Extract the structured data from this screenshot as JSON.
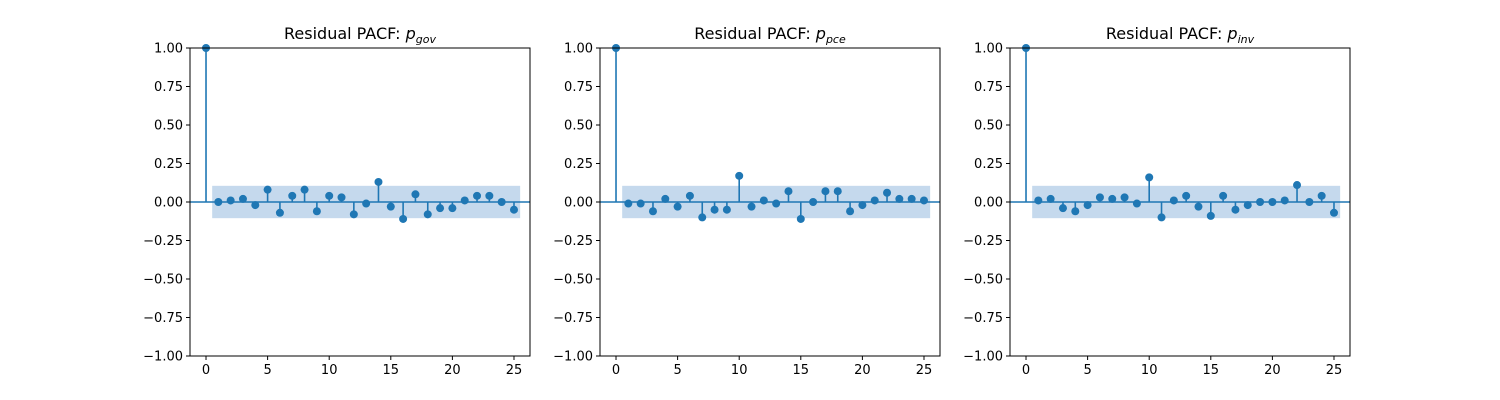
{
  "chart_data": [
    {
      "type": "stem",
      "title_prefix": "Residual PACF: ",
      "title_symbol": "p",
      "title_subscript": "gov",
      "x": [
        0,
        1,
        2,
        3,
        4,
        5,
        6,
        7,
        8,
        9,
        10,
        11,
        12,
        13,
        14,
        15,
        16,
        17,
        18,
        19,
        20,
        21,
        22,
        23,
        24,
        25
      ],
      "values": [
        1.0,
        0.0,
        0.01,
        0.02,
        -0.02,
        0.08,
        -0.07,
        0.04,
        0.08,
        -0.06,
        0.04,
        0.03,
        -0.08,
        -0.01,
        0.13,
        -0.03,
        -0.11,
        0.05,
        -0.08,
        -0.04,
        -0.04,
        0.01,
        0.04,
        0.04,
        0.0,
        -0.05
      ],
      "confidence_band": [
        -0.105,
        0.105
      ],
      "xlim": [
        -1.3,
        26.3
      ],
      "ylim": [
        -1.0,
        1.0
      ],
      "xticks": [
        0,
        5,
        10,
        15,
        20,
        25
      ],
      "yticks": [
        -1.0,
        -0.75,
        -0.5,
        -0.25,
        0.0,
        0.25,
        0.5,
        0.75,
        1.0
      ],
      "ytick_labels": [
        "−1.00",
        "−0.75",
        "−0.50",
        "−0.25",
        "0.00",
        "0.25",
        "0.50",
        "0.75",
        "1.00"
      ],
      "xtick_labels": [
        "0",
        "5",
        "10",
        "15",
        "20",
        "25"
      ],
      "color": "#1f77b4",
      "band_color": "#c5d9ed"
    },
    {
      "type": "stem",
      "title_prefix": "Residual PACF: ",
      "title_symbol": "p",
      "title_subscript": "pce",
      "x": [
        0,
        1,
        2,
        3,
        4,
        5,
        6,
        7,
        8,
        9,
        10,
        11,
        12,
        13,
        14,
        15,
        16,
        17,
        18,
        19,
        20,
        21,
        22,
        23,
        24,
        25
      ],
      "values": [
        1.0,
        -0.01,
        -0.01,
        -0.06,
        0.02,
        -0.03,
        0.04,
        -0.1,
        -0.05,
        -0.05,
        0.17,
        -0.03,
        0.01,
        -0.01,
        0.07,
        -0.11,
        0.0,
        0.07,
        0.07,
        -0.06,
        -0.02,
        0.01,
        0.06,
        0.02,
        0.02,
        0.01
      ],
      "confidence_band": [
        -0.105,
        0.105
      ],
      "xlim": [
        -1.3,
        26.3
      ],
      "ylim": [
        -1.0,
        1.0
      ],
      "xticks": [
        0,
        5,
        10,
        15,
        20,
        25
      ],
      "yticks": [
        -1.0,
        -0.75,
        -0.5,
        -0.25,
        0.0,
        0.25,
        0.5,
        0.75,
        1.0
      ],
      "ytick_labels": [
        "−1.00",
        "−0.75",
        "−0.50",
        "−0.25",
        "0.00",
        "0.25",
        "0.50",
        "0.75",
        "1.00"
      ],
      "xtick_labels": [
        "0",
        "5",
        "10",
        "15",
        "20",
        "25"
      ],
      "color": "#1f77b4",
      "band_color": "#c5d9ed"
    },
    {
      "type": "stem",
      "title_prefix": "Residual PACF: ",
      "title_symbol": "p",
      "title_subscript": "inv",
      "x": [
        0,
        1,
        2,
        3,
        4,
        5,
        6,
        7,
        8,
        9,
        10,
        11,
        12,
        13,
        14,
        15,
        16,
        17,
        18,
        19,
        20,
        21,
        22,
        23,
        24,
        25
      ],
      "values": [
        1.0,
        0.01,
        0.02,
        -0.04,
        -0.06,
        -0.02,
        0.03,
        0.02,
        0.03,
        -0.01,
        0.16,
        -0.1,
        0.01,
        0.04,
        -0.03,
        -0.09,
        0.04,
        -0.05,
        -0.02,
        0.0,
        0.0,
        0.01,
        0.11,
        0.0,
        0.04,
        -0.07
      ],
      "confidence_band": [
        -0.105,
        0.105
      ],
      "xlim": [
        -1.3,
        26.3
      ],
      "ylim": [
        -1.0,
        1.0
      ],
      "xticks": [
        0,
        5,
        10,
        15,
        20,
        25
      ],
      "yticks": [
        -1.0,
        -0.75,
        -0.5,
        -0.25,
        0.0,
        0.25,
        0.5,
        0.75,
        1.0
      ],
      "ytick_labels": [
        "−1.00",
        "−0.75",
        "−0.50",
        "−0.25",
        "0.00",
        "0.25",
        "0.50",
        "0.75",
        "1.00"
      ],
      "xtick_labels": [
        "0",
        "5",
        "10",
        "15",
        "20",
        "25"
      ],
      "color": "#1f77b4",
      "band_color": "#c5d9ed"
    }
  ]
}
